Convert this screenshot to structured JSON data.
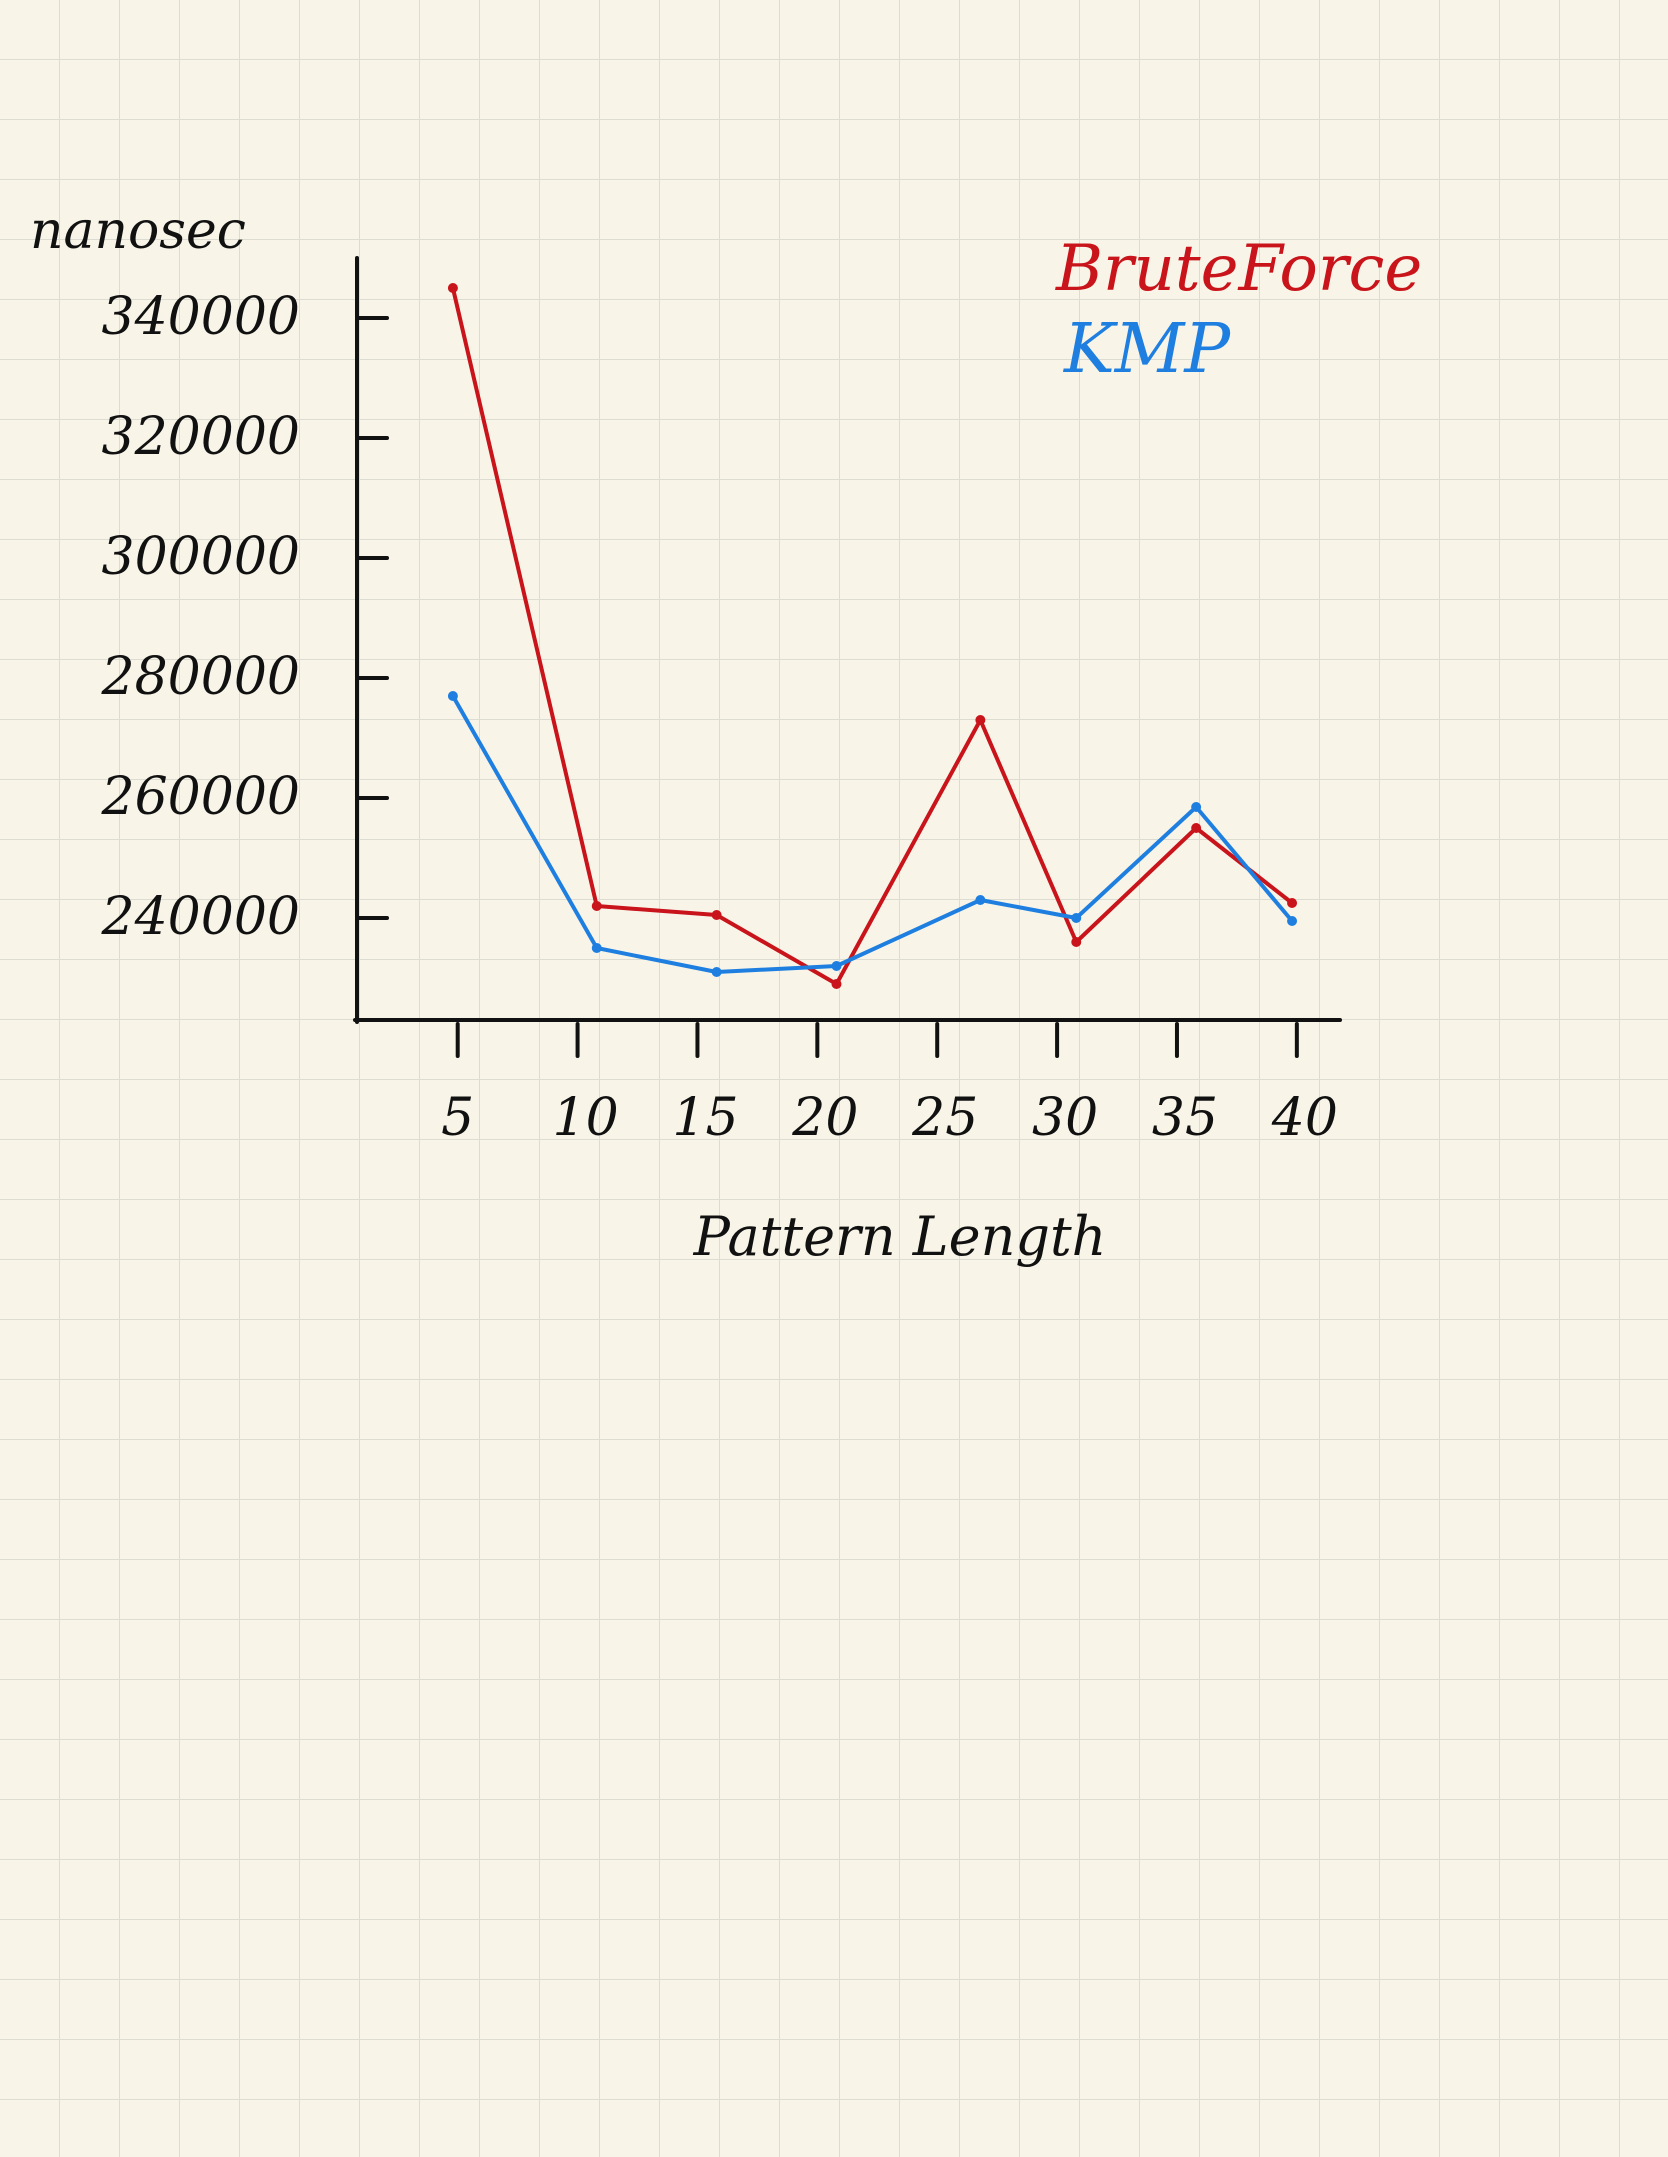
{
  "chart_data": {
    "type": "line",
    "ylabel": "nanosec",
    "xlabel": "Pattern Length",
    "y_ticks": [
      240000,
      260000,
      280000,
      300000,
      320000,
      340000
    ],
    "x_ticks": [
      5,
      10,
      15,
      20,
      25,
      30,
      35,
      40
    ],
    "xlim": [
      0,
      41
    ],
    "ylim": [
      223000,
      350000
    ],
    "grid": false,
    "legend_position": "top-right",
    "series": [
      {
        "name": "BruteForce",
        "color": "#c8141a",
        "x": [
          4,
          10,
          15,
          20,
          26,
          30,
          35,
          39
        ],
        "y": [
          345000,
          242000,
          240500,
          229000,
          273000,
          236000,
          255000,
          242500
        ]
      },
      {
        "name": "KMP",
        "color": "#1f7fe0",
        "x": [
          4,
          10,
          15,
          20,
          26,
          30,
          35,
          39
        ],
        "y": [
          277000,
          235000,
          231000,
          232000,
          243000,
          240000,
          258500,
          239500
        ]
      }
    ]
  }
}
